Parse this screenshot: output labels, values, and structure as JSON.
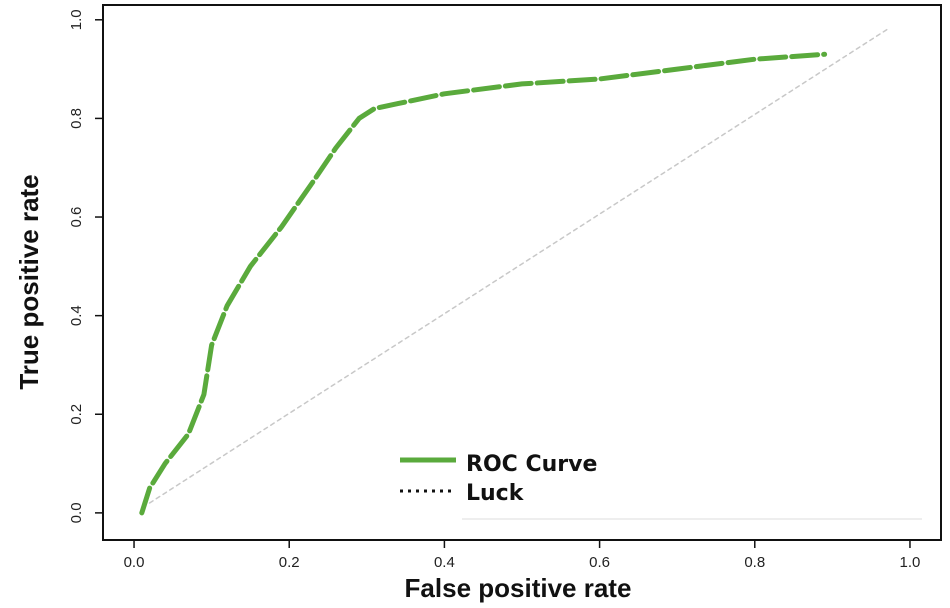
{
  "chart_data": {
    "type": "line",
    "title": "",
    "xlabel": "False positive rate",
    "ylabel": "True positive rate",
    "xlim": [
      -0.04,
      1.04
    ],
    "ylim": [
      -0.055,
      1.03
    ],
    "xticks": [
      0.0,
      0.2,
      0.4,
      0.6,
      0.8,
      1.0
    ],
    "xtick_labels": [
      "0.0",
      "0.2",
      "0.4",
      "0.6",
      "0.8",
      "1.0"
    ],
    "yticks": [
      0.0,
      0.2,
      0.4,
      0.6,
      0.8,
      1.0
    ],
    "ytick_labels": [
      "0.0",
      "0.2",
      "0.4",
      "0.6",
      "0.8",
      "1.0"
    ],
    "grid": false,
    "legend_position": "bottom-center",
    "series": [
      {
        "name": "ROC Curve",
        "style": "dashed",
        "color": "#5aaa3c",
        "x": [
          0.01,
          0.02,
          0.04,
          0.07,
          0.09,
          0.1,
          0.12,
          0.15,
          0.19,
          0.23,
          0.26,
          0.29,
          0.31,
          0.34,
          0.4,
          0.5,
          0.6,
          0.7,
          0.8,
          0.89
        ],
        "y": [
          0.0,
          0.05,
          0.1,
          0.16,
          0.24,
          0.34,
          0.42,
          0.5,
          0.58,
          0.67,
          0.74,
          0.8,
          0.82,
          0.83,
          0.85,
          0.87,
          0.88,
          0.9,
          0.92,
          0.93
        ]
      },
      {
        "name": "Luck",
        "style": "dotted",
        "color": "#c8c8c8",
        "x": [
          0.02,
          0.97
        ],
        "y": [
          0.02,
          0.98
        ]
      }
    ]
  }
}
